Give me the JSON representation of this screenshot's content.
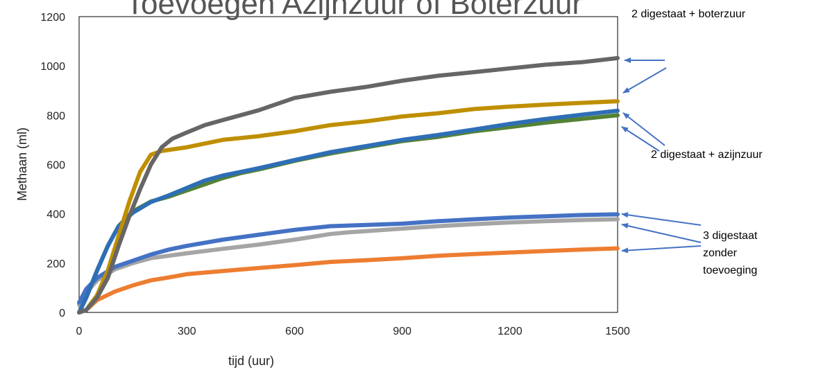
{
  "chart_data": {
    "type": "line",
    "title": "Toevoegen Azijnzuur of Boterzuur",
    "xlabel": "tijd (uur)",
    "ylabel": "Methaan (ml)",
    "xlim": [
      0,
      1500
    ],
    "ylim": [
      0,
      1200
    ],
    "xticks": [
      0,
      300,
      600,
      900,
      1200,
      1500
    ],
    "yticks": [
      0,
      200,
      400,
      600,
      800,
      1000,
      1200
    ],
    "grid": false,
    "series": [
      {
        "color": "#ed7d31",
        "x": [
          0,
          20,
          50,
          100,
          150,
          200,
          250,
          300,
          400,
          500,
          600,
          700,
          800,
          900,
          1000,
          1100,
          1200,
          1300,
          1400,
          1500
        ],
        "y": [
          0,
          10,
          50,
          85,
          110,
          130,
          142,
          155,
          168,
          180,
          192,
          205,
          212,
          220,
          230,
          237,
          243,
          249,
          255,
          260
        ]
      },
      {
        "color": "#a5a5a5",
        "x": [
          0,
          20,
          50,
          100,
          150,
          200,
          250,
          300,
          400,
          500,
          600,
          700,
          750,
          800,
          900,
          1000,
          1100,
          1200,
          1300,
          1400,
          1500
        ],
        "y": [
          30,
          80,
          130,
          175,
          200,
          220,
          230,
          240,
          258,
          275,
          295,
          318,
          325,
          330,
          340,
          350,
          358,
          365,
          370,
          375,
          378
        ]
      },
      {
        "color": "#4472c4",
        "x": [
          0,
          20,
          50,
          100,
          150,
          200,
          250,
          300,
          400,
          500,
          600,
          700,
          800,
          900,
          1000,
          1100,
          1200,
          1300,
          1400,
          1500
        ],
        "y": [
          40,
          95,
          140,
          185,
          210,
          235,
          255,
          270,
          295,
          315,
          335,
          350,
          355,
          360,
          370,
          378,
          385,
          390,
          395,
          398
        ]
      },
      {
        "color": "#548235",
        "x": [
          0,
          20,
          50,
          80,
          110,
          150,
          200,
          250,
          300,
          350,
          400,
          450,
          500,
          600,
          700,
          800,
          900,
          1000,
          1100,
          1200,
          1300,
          1400,
          1500
        ],
        "y": [
          0,
          60,
          170,
          270,
          350,
          410,
          450,
          470,
          495,
          520,
          545,
          565,
          580,
          615,
          645,
          670,
          695,
          712,
          735,
          752,
          770,
          785,
          800
        ]
      },
      {
        "color": "#2e6eb6",
        "x": [
          0,
          20,
          50,
          80,
          110,
          150,
          200,
          250,
          300,
          350,
          400,
          450,
          500,
          600,
          700,
          800,
          900,
          1000,
          1100,
          1200,
          1300,
          1400,
          1500
        ],
        "y": [
          0,
          60,
          170,
          270,
          350,
          405,
          448,
          475,
          505,
          535,
          555,
          570,
          585,
          618,
          650,
          675,
          700,
          720,
          742,
          765,
          785,
          802,
          818
        ]
      },
      {
        "color": "#bf8f00",
        "x": [
          0,
          20,
          50,
          80,
          110,
          140,
          170,
          200,
          230,
          300,
          400,
          500,
          600,
          700,
          800,
          900,
          1000,
          1100,
          1200,
          1300,
          1400,
          1500
        ],
        "y": [
          0,
          10,
          70,
          170,
          310,
          450,
          570,
          640,
          655,
          670,
          700,
          715,
          735,
          760,
          775,
          795,
          808,
          825,
          835,
          843,
          850,
          857
        ]
      },
      {
        "color": "#666666",
        "x": [
          0,
          20,
          50,
          80,
          110,
          140,
          170,
          200,
          230,
          260,
          300,
          350,
          400,
          450,
          500,
          600,
          700,
          800,
          900,
          1000,
          1100,
          1200,
          1300,
          1400,
          1500
        ],
        "y": [
          0,
          10,
          60,
          140,
          270,
          390,
          500,
          600,
          670,
          705,
          730,
          760,
          780,
          800,
          820,
          870,
          895,
          915,
          940,
          960,
          975,
          990,
          1005,
          1015,
          1032
        ]
      }
    ],
    "annotations": [
      {
        "lines": [
          "2 digestaat + boterzuur"
        ],
        "align": "start",
        "anchor": [
          910,
          25
        ],
        "arrows": [
          [
            958,
            87,
            900,
            87
          ],
          [
            960,
            98,
            898,
            134
          ]
        ]
      },
      {
        "lines": [
          "2 digestaat + azijnzuur"
        ],
        "align": "start",
        "anchor": [
          938,
          228
        ],
        "arrows": [
          [
            958,
            210,
            898,
            163
          ],
          [
            950,
            218,
            896,
            183
          ]
        ]
      },
      {
        "lines": [
          "3 digestaat",
          "zonder",
          "toevoeging"
        ],
        "align": "start",
        "anchor": [
          1013,
          345
        ],
        "arrows": [
          [
            1010,
            325,
            896,
            309
          ],
          [
            1010,
            350,
            896,
            324
          ],
          [
            1010,
            355,
            896,
            362
          ]
        ]
      }
    ]
  }
}
